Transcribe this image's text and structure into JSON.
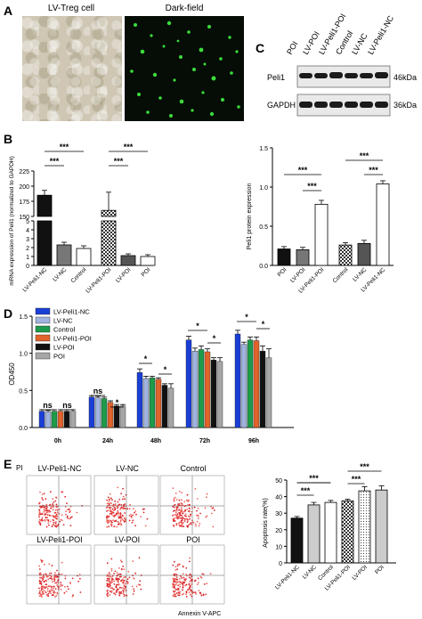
{
  "panels": {
    "a_label": "A",
    "b_label": "B",
    "c_label": "C",
    "d_label": "D",
    "e_label": "E"
  },
  "panel_a": {
    "left_caption": "LV-Treg cell",
    "right_caption": "Dark-field"
  },
  "panel_c": {
    "lanes": [
      "POI",
      "LV-POI",
      "LV-Peli1-POI",
      "Control",
      "LV-NC",
      "LV-Peli1-NC"
    ],
    "rows": [
      {
        "name": "Peli1",
        "size": "46kDa"
      },
      {
        "name": "GAPDH",
        "size": "36kDa"
      }
    ]
  },
  "flow": {
    "y_axis_label": "PI",
    "x_axis_label": "Annexin V-APC",
    "plots": [
      "LV-Peli1-NC",
      "LV-NC",
      "Control",
      "LV-Peli1-POI",
      "LV-POI",
      "POI"
    ]
  },
  "chart_data": [
    {
      "id": "B-left",
      "type": "bar",
      "ylabel": "mRNA expression of Peli1 (normalized to GAPDH)",
      "categories": [
        "LV-Peli1-NC",
        "LV-NC",
        "Control",
        "LV-Peli1-POI",
        "LV-POI",
        "POI"
      ],
      "values": [
        185,
        2.3,
        1.9,
        160,
        1.1,
        1.0
      ],
      "errors": [
        8,
        0.3,
        0.3,
        30,
        0.2,
        0.2
      ],
      "yticks_lower": [
        "0",
        "1",
        "2",
        "3",
        "4",
        "5"
      ],
      "yticks_upper": [
        "150",
        "175",
        "200",
        "225"
      ],
      "patterns": [
        "solid-black",
        "solid-gray",
        "white",
        "checker",
        "dark-gray",
        "white"
      ],
      "significance": [
        "***",
        "***",
        "***",
        "***"
      ]
    },
    {
      "id": "B-right",
      "type": "bar",
      "ylabel": "Peli1 protein expression",
      "categories": [
        "POI",
        "LV-POI",
        "LV-Peli1-POI",
        "Control",
        "LV-NC",
        "LV-Peli1-NC"
      ],
      "values": [
        0.21,
        0.2,
        0.78,
        0.26,
        0.28,
        1.04
      ],
      "errors": [
        0.03,
        0.03,
        0.05,
        0.03,
        0.04,
        0.04
      ],
      "ylim": [
        0,
        1.5
      ],
      "yticks": [
        "0.0",
        "0.5",
        "1.0",
        "1.5"
      ],
      "patterns": [
        "solid-black",
        "solid-gray",
        "white",
        "checker",
        "dark-gray",
        "white"
      ],
      "significance": [
        "***",
        "***",
        "***",
        "***"
      ]
    },
    {
      "id": "D",
      "type": "bar",
      "ylabel": "OD450",
      "categories": [
        "0h",
        "24h",
        "48h",
        "72h",
        "96h"
      ],
      "ylim": [
        0,
        1.5
      ],
      "yticks": [
        "0.0",
        "0.5",
        "1.0",
        "1.5"
      ],
      "series": [
        {
          "name": "LV-Peli1-NC",
          "color": "#1a3fd6",
          "values": [
            0.22,
            0.41,
            0.74,
            1.18,
            1.26
          ],
          "errors": [
            0.02,
            0.02,
            0.05,
            0.05,
            0.05
          ]
        },
        {
          "name": "LV-NC",
          "color": "#9fb3de",
          "values": [
            0.21,
            0.4,
            0.66,
            1.03,
            1.12
          ],
          "errors": [
            0.02,
            0.02,
            0.03,
            0.04,
            0.03
          ]
        },
        {
          "name": "Control",
          "color": "#1e9a4b",
          "values": [
            0.22,
            0.39,
            0.67,
            1.05,
            1.18
          ],
          "errors": [
            0.02,
            0.02,
            0.02,
            0.05,
            0.04
          ]
        },
        {
          "name": "LV-Peli1-POI",
          "color": "#e0632b",
          "values": [
            0.22,
            0.34,
            0.65,
            1.02,
            1.17
          ],
          "errors": [
            0.02,
            0.02,
            0.02,
            0.04,
            0.05
          ]
        },
        {
          "name": "LV-POI",
          "color": "#111111",
          "values": [
            0.22,
            0.29,
            0.57,
            0.91,
            1.03
          ],
          "errors": [
            0.02,
            0.02,
            0.02,
            0.03,
            0.07
          ]
        },
        {
          "name": "POI",
          "color": "#a6a6a6",
          "values": [
            0.22,
            0.29,
            0.53,
            0.89,
            0.94
          ],
          "errors": [
            0.02,
            0.02,
            0.06,
            0.05,
            0.12
          ]
        }
      ],
      "significance": [
        "ns",
        "ns",
        "ns",
        "*",
        "*",
        "*",
        "*",
        "*",
        "*",
        "*"
      ]
    },
    {
      "id": "E-right",
      "type": "bar",
      "ylabel": "Apoptosis rate(%)",
      "categories": [
        "LV-Peli1-NC",
        "LV-NC",
        "Control",
        "LV-Peli1-POI",
        "LV-POI",
        "POI"
      ],
      "values": [
        27,
        35,
        36.5,
        37.5,
        43.5,
        44
      ],
      "errors": [
        1,
        1.5,
        1.2,
        1,
        2.5,
        2.5
      ],
      "ylim": [
        0,
        50
      ],
      "yticks": [
        "0",
        "10",
        "20",
        "30",
        "40",
        "50"
      ],
      "patterns": [
        "solid-black",
        "light-gray",
        "white",
        "checker",
        "dotted",
        "light-gray"
      ],
      "significance": [
        "***",
        "***",
        "***",
        "***",
        "**"
      ]
    }
  ]
}
